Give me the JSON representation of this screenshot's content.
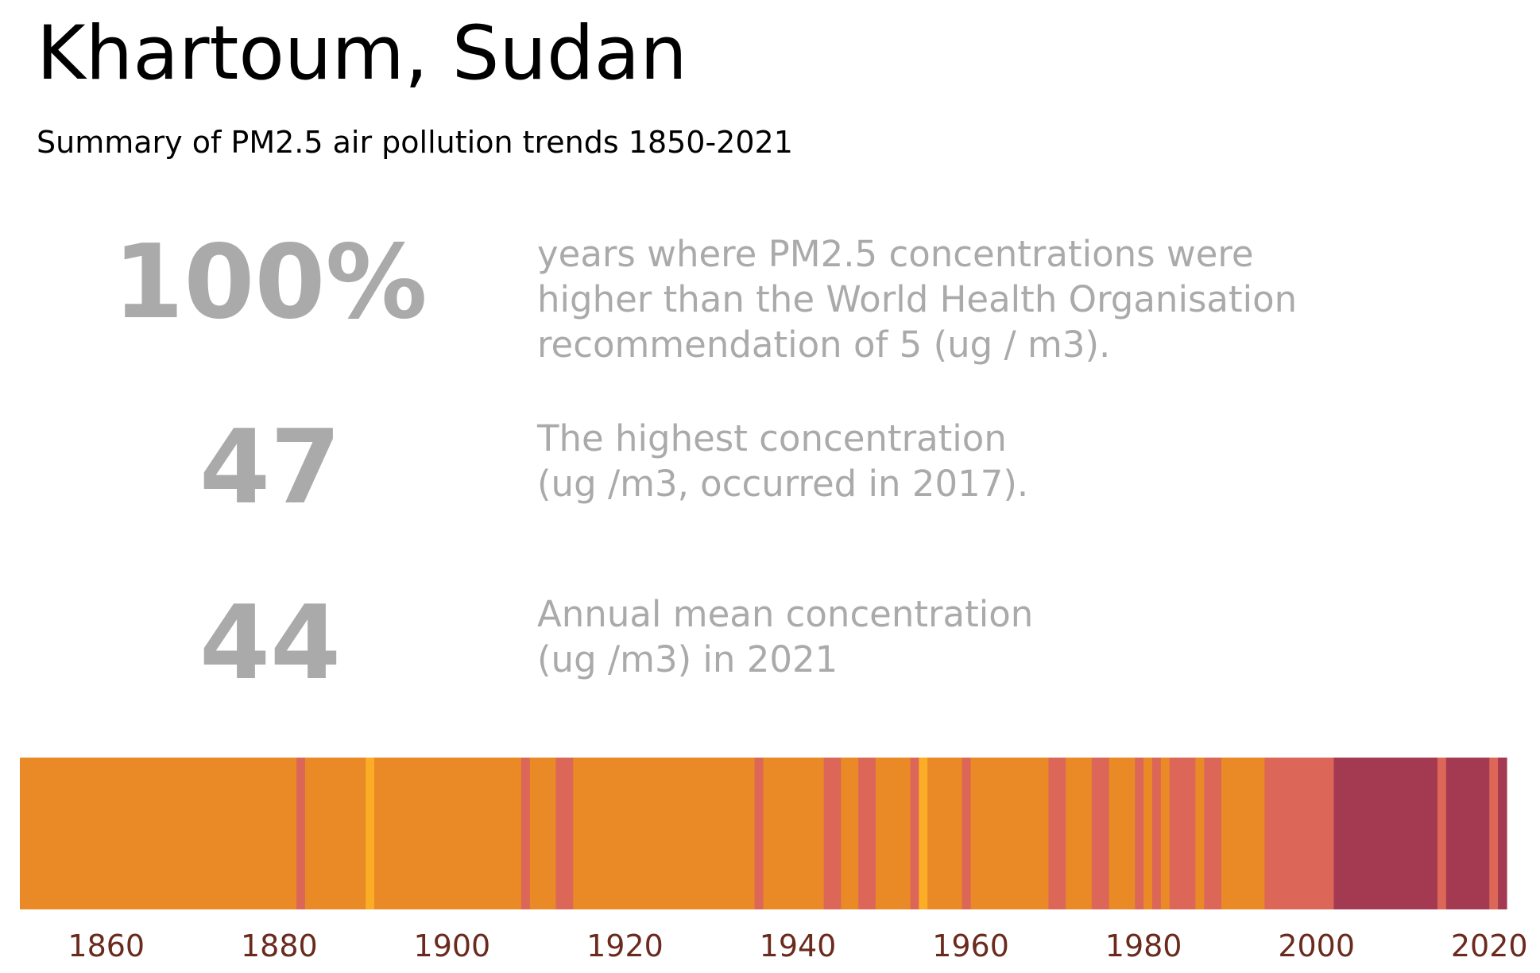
{
  "title": "Khartoum, Sudan",
  "subtitle": "Summary of PM2.5 air pollution trends 1850-2021",
  "stats": [
    {
      "value": "100%",
      "lines": [
        "years where PM2.5 concentrations were",
        "higher than the World Health Organisation",
        "recommendation of 5 (ug / m3)."
      ]
    },
    {
      "value": "47",
      "lines": [
        "The highest concentration",
        "(ug /m3, occurred in 2017)."
      ]
    },
    {
      "value": "44",
      "lines": [
        "Annual mean concentration",
        "(ug /m3) in 2021"
      ]
    }
  ],
  "colors": {
    "background": "#ffffff",
    "stat_text": "#aaaaaa",
    "tick_text": "#6b2a1e",
    "level_low": "#fbad26",
    "level_mid": "#e98a26",
    "level_high": "#dc6758",
    "level_very_high": "#a43a52"
  },
  "chart_data": {
    "type": "heatmap",
    "x_start": 1850,
    "x_end": 2021,
    "x_ticks": [
      1860,
      1880,
      1900,
      1920,
      1940,
      1960,
      1980,
      2000,
      2020
    ],
    "legend": "none",
    "grid": false,
    "segments": [
      {
        "start": 1850,
        "end": 1881,
        "level": "mid"
      },
      {
        "start": 1882,
        "end": 1882,
        "level": "high"
      },
      {
        "start": 1883,
        "end": 1889,
        "level": "mid"
      },
      {
        "start": 1890,
        "end": 1890,
        "level": "low"
      },
      {
        "start": 1891,
        "end": 1907,
        "level": "mid"
      },
      {
        "start": 1908,
        "end": 1908,
        "level": "high"
      },
      {
        "start": 1909,
        "end": 1911,
        "level": "mid"
      },
      {
        "start": 1912,
        "end": 1913,
        "level": "high"
      },
      {
        "start": 1914,
        "end": 1934,
        "level": "mid"
      },
      {
        "start": 1935,
        "end": 1935,
        "level": "high"
      },
      {
        "start": 1936,
        "end": 1942,
        "level": "mid"
      },
      {
        "start": 1943,
        "end": 1944,
        "level": "high"
      },
      {
        "start": 1945,
        "end": 1946,
        "level": "mid"
      },
      {
        "start": 1947,
        "end": 1948,
        "level": "high"
      },
      {
        "start": 1949,
        "end": 1952,
        "level": "mid"
      },
      {
        "start": 1953,
        "end": 1953,
        "level": "high"
      },
      {
        "start": 1954,
        "end": 1954,
        "level": "low"
      },
      {
        "start": 1955,
        "end": 1958,
        "level": "mid"
      },
      {
        "start": 1959,
        "end": 1959,
        "level": "high"
      },
      {
        "start": 1960,
        "end": 1968,
        "level": "mid"
      },
      {
        "start": 1969,
        "end": 1970,
        "level": "high"
      },
      {
        "start": 1971,
        "end": 1973,
        "level": "mid"
      },
      {
        "start": 1974,
        "end": 1975,
        "level": "high"
      },
      {
        "start": 1976,
        "end": 1978,
        "level": "mid"
      },
      {
        "start": 1979,
        "end": 1979,
        "level": "high"
      },
      {
        "start": 1980,
        "end": 1980,
        "level": "mid"
      },
      {
        "start": 1981,
        "end": 1981,
        "level": "high"
      },
      {
        "start": 1982,
        "end": 1982,
        "level": "mid"
      },
      {
        "start": 1983,
        "end": 1985,
        "level": "high"
      },
      {
        "start": 1986,
        "end": 1986,
        "level": "mid"
      },
      {
        "start": 1987,
        "end": 1988,
        "level": "high"
      },
      {
        "start": 1989,
        "end": 1993,
        "level": "mid"
      },
      {
        "start": 1994,
        "end": 2001,
        "level": "high"
      },
      {
        "start": 2002,
        "end": 2013,
        "level": "very_high"
      },
      {
        "start": 2014,
        "end": 2014,
        "level": "high"
      },
      {
        "start": 2015,
        "end": 2019,
        "level": "very_high"
      },
      {
        "start": 2020,
        "end": 2020,
        "level": "high"
      },
      {
        "start": 2021,
        "end": 2021,
        "level": "very_high"
      }
    ]
  }
}
